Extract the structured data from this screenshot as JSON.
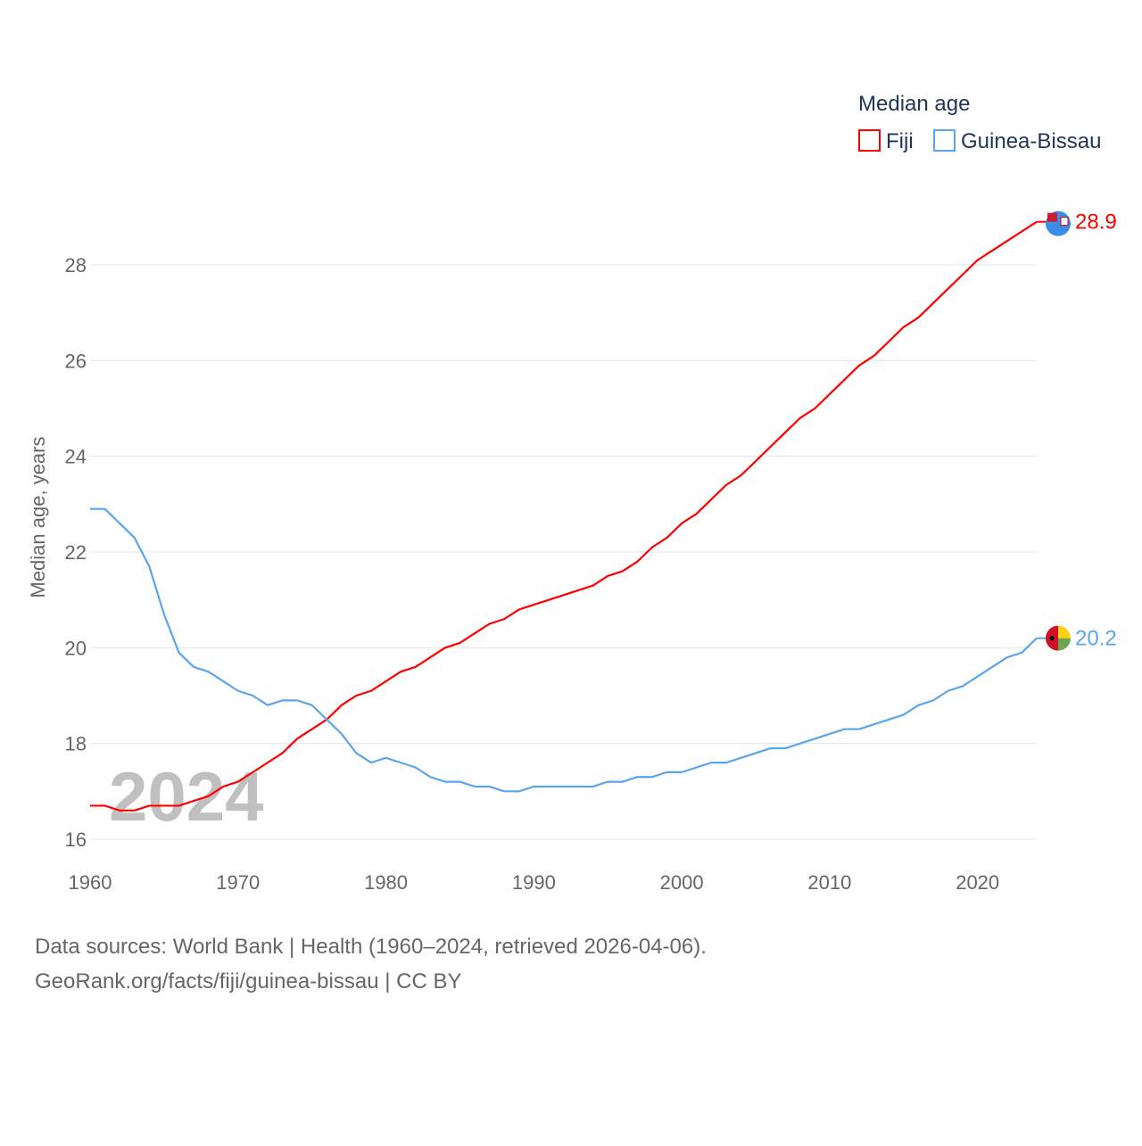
{
  "chart_data": {
    "type": "line",
    "title": "",
    "xlabel": "",
    "ylabel": "Median age, years",
    "legend_title": "Median age",
    "legend_position": "top-right",
    "xlim": [
      1960,
      2024
    ],
    "ylim": [
      16,
      29
    ],
    "x_ticks": [
      "1960",
      "1970",
      "1980",
      "1990",
      "2000",
      "2010",
      "2020"
    ],
    "y_ticks": [
      "16",
      "18",
      "20",
      "22",
      "24",
      "26",
      "28"
    ],
    "grid": true,
    "year_watermark": "2024",
    "x": [
      1960,
      1961,
      1962,
      1963,
      1964,
      1965,
      1966,
      1967,
      1968,
      1969,
      1970,
      1971,
      1972,
      1973,
      1974,
      1975,
      1976,
      1977,
      1978,
      1979,
      1980,
      1981,
      1982,
      1983,
      1984,
      1985,
      1986,
      1987,
      1988,
      1989,
      1990,
      1991,
      1992,
      1993,
      1994,
      1995,
      1996,
      1997,
      1998,
      1999,
      2000,
      2001,
      2002,
      2003,
      2004,
      2005,
      2006,
      2007,
      2008,
      2009,
      2010,
      2011,
      2012,
      2013,
      2014,
      2015,
      2016,
      2017,
      2018,
      2019,
      2020,
      2021,
      2022,
      2023,
      2024
    ],
    "series": [
      {
        "name": "Fiji",
        "color": "#ff0000",
        "end_label": "28.9",
        "values": [
          16.7,
          16.7,
          16.6,
          16.6,
          16.7,
          16.7,
          16.7,
          16.8,
          16.9,
          17.1,
          17.2,
          17.4,
          17.6,
          17.8,
          18.1,
          18.3,
          18.5,
          18.8,
          19.0,
          19.1,
          19.3,
          19.5,
          19.6,
          19.8,
          20.0,
          20.1,
          20.3,
          20.5,
          20.6,
          20.8,
          20.9,
          21.0,
          21.1,
          21.2,
          21.3,
          21.5,
          21.6,
          21.8,
          22.1,
          22.3,
          22.6,
          22.8,
          23.1,
          23.4,
          23.6,
          23.9,
          24.2,
          24.5,
          24.8,
          25.0,
          25.3,
          25.6,
          25.9,
          26.1,
          26.4,
          26.7,
          26.9,
          27.2,
          27.5,
          27.8,
          28.1,
          28.3,
          28.5,
          28.7,
          28.9
        ]
      },
      {
        "name": "Guinea-Bissau",
        "color": "#5ba4ee",
        "end_label": "20.2",
        "values": [
          22.9,
          22.9,
          22.6,
          22.3,
          21.7,
          20.7,
          19.9,
          19.6,
          19.5,
          19.3,
          19.1,
          19.0,
          18.8,
          18.9,
          18.9,
          18.8,
          18.5,
          18.2,
          17.8,
          17.6,
          17.7,
          17.6,
          17.5,
          17.3,
          17.2,
          17.2,
          17.1,
          17.1,
          17.0,
          17.0,
          17.1,
          17.1,
          17.1,
          17.1,
          17.1,
          17.2,
          17.2,
          17.3,
          17.3,
          17.4,
          17.4,
          17.5,
          17.6,
          17.6,
          17.7,
          17.8,
          17.9,
          17.9,
          18.0,
          18.1,
          18.2,
          18.3,
          18.3,
          18.4,
          18.5,
          18.6,
          18.8,
          18.9,
          19.1,
          19.2,
          19.4,
          19.6,
          19.8,
          19.9,
          20.2
        ]
      }
    ]
  },
  "footer": {
    "line1": "Data sources: World Bank | Health (1960–2024, retrieved 2026-04-06).",
    "line2": "GeoRank.org/facts/fiji/guinea-bissau | CC BY"
  }
}
